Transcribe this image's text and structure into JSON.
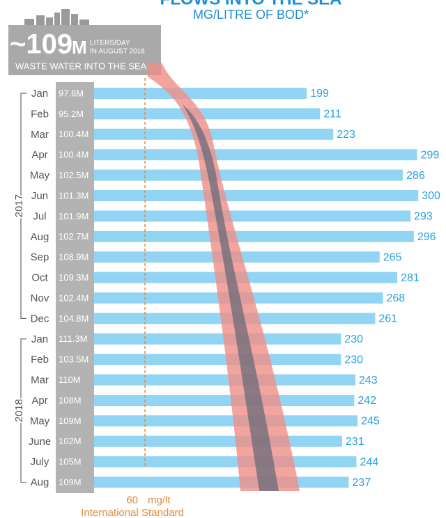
{
  "chart_data": {
    "type": "bar",
    "title": "FLOWS INTO THE SEA",
    "subtitle": "MG/LITRE OF BOD*",
    "headline": "~109",
    "headline_unit": "M",
    "headline_line1": "LITERS/DAY",
    "headline_line2": "IN AUGUST 2018",
    "headline_caption": "WASTE WATER INTO THE SEA",
    "years": [
      "2017",
      "2018"
    ],
    "categories": [
      "Jan",
      "Feb",
      "Mar",
      "Apr",
      "May",
      "Jun",
      "Jul",
      "Aug",
      "Sep",
      "Oct",
      "Nov",
      "Dec",
      "Jan",
      "Feb",
      "Mar",
      "Apr",
      "May",
      "June",
      "July",
      "Aug"
    ],
    "volume_labels": [
      "97.6M",
      "95.2M",
      "100.4M",
      "100.4M",
      "102.5M",
      "101.3M",
      "101.9M",
      "102.7M",
      "108.9M",
      "109.3M",
      "102.4M",
      "104.8M",
      "111.3M",
      "103.5M",
      "110M",
      "108M",
      "109M",
      "102M",
      "105M",
      "109M"
    ],
    "values": [
      199,
      211,
      223,
      299,
      286,
      300,
      293,
      296,
      265,
      281,
      268,
      261,
      230,
      230,
      243,
      242,
      245,
      231,
      244,
      237
    ],
    "color": "#92d4f3",
    "label_color": "#27a2dc",
    "standard": {
      "value": 60,
      "unit": "mg/lt",
      "caption": "International Standard",
      "color": "#e58a3c"
    }
  }
}
